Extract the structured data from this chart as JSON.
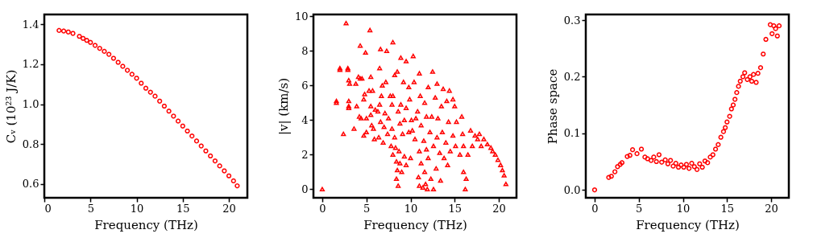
{
  "chart_data": [
    {
      "type": "scatter",
      "xlabel": "Frequency (THz)",
      "ylabel": "Cᵥ (10²³ J/K)",
      "marker": "circle",
      "grid": false,
      "xlim": [
        0,
        22
      ],
      "ylim": [
        0.53,
        1.45
      ],
      "xticks": [
        0,
        5,
        10,
        15,
        20
      ],
      "yticks": [
        0.6,
        0.8,
        {
          "value": 1.0,
          "label": "1.0"
        },
        1.2,
        1.4
      ],
      "series": [
        {
          "color": "#ff0000",
          "x": [
            1.6,
            2.1,
            2.6,
            3.1,
            3.8,
            4.2,
            4.6,
            5.0,
            5.5,
            6.0,
            6.5,
            7.0,
            7.5,
            8.0,
            8.5,
            9.0,
            9.5,
            10.0,
            10.5,
            11.0,
            11.5,
            12.0,
            12.5,
            13.0,
            13.5,
            14.0,
            14.5,
            15.0,
            15.5,
            16.0,
            16.5,
            17.0,
            17.5,
            18.0,
            18.5,
            19.0,
            19.5,
            20.0,
            20.5,
            20.9
          ],
          "values": [
            1.37,
            1.367,
            1.362,
            1.355,
            1.34,
            1.33,
            1.32,
            1.31,
            1.295,
            1.28,
            1.265,
            1.25,
            1.23,
            1.21,
            1.19,
            1.17,
            1.15,
            1.13,
            1.105,
            1.08,
            1.06,
            1.04,
            1.015,
            0.99,
            0.965,
            0.94,
            0.915,
            0.89,
            0.865,
            0.84,
            0.815,
            0.79,
            0.765,
            0.74,
            0.715,
            0.69,
            0.665,
            0.64,
            0.615,
            0.59
          ]
        }
      ]
    },
    {
      "type": "scatter",
      "xlabel": "Frequency (THz)",
      "ylabel": "|v| (km/s)",
      "marker": "triangle",
      "grid": false,
      "xlim": [
        -1,
        22
      ],
      "ylim": [
        -0.5,
        10.1
      ],
      "xticks": [
        0,
        5,
        10,
        15,
        20
      ],
      "yticks": [
        0,
        2,
        4,
        6,
        8,
        10
      ],
      "series": [
        {
          "color": "#ff0000",
          "x": [
            0,
            1.6,
            1.6,
            2.0,
            2.0,
            2.4,
            2.7,
            2.9,
            2.9,
            3.0,
            3.0,
            3.0,
            3.0,
            3.1,
            3.6,
            3.8,
            3.9,
            4.1,
            4.2,
            4.3,
            4.3,
            4.4,
            4.5,
            4.7,
            4.7,
            4.8,
            4.9,
            5.0,
            5.0,
            5.3,
            5.4,
            5.5,
            5.5,
            5.5,
            5.6,
            5.7,
            5.8,
            5.9,
            6.0,
            6.3,
            6.4,
            6.5,
            6.5,
            6.6,
            6.6,
            6.7,
            6.8,
            6.9,
            7.0,
            7.1,
            7.2,
            7.3,
            7.4,
            7.5,
            7.7,
            7.8,
            7.9,
            7.9,
            8.0,
            8.0,
            8.0,
            8.2,
            8.2,
            8.3,
            8.4,
            8.4,
            8.5,
            8.5,
            8.6,
            8.6,
            8.7,
            8.8,
            8.8,
            8.9,
            8.9,
            9.0,
            9.1,
            9.2,
            9.3,
            9.3,
            9.5,
            9.5,
            9.5,
            9.8,
            9.8,
            9.9,
            10.0,
            10.1,
            10.2,
            10.3,
            10.4,
            10.5,
            10.6,
            10.8,
            10.9,
            11.0,
            11.0,
            11.0,
            11.1,
            11.2,
            11.2,
            11.4,
            11.5,
            11.6,
            11.6,
            11.7,
            11.8,
            11.8,
            11.9,
            12.0,
            12.0,
            12.2,
            12.3,
            12.4,
            12.5,
            12.6,
            12.6,
            12.8,
            12.9,
            13.0,
            13.0,
            13.1,
            13.3,
            13.4,
            13.5,
            13.6,
            13.7,
            13.8,
            14.0,
            14.1,
            14.2,
            14.3,
            14.4,
            14.5,
            14.8,
            14.8,
            15.0,
            15.1,
            15.2,
            15.6,
            15.8,
            15.9,
            16.0,
            16.0,
            16.2,
            16.3,
            16.5,
            16.8,
            17.0,
            17.3,
            17.6,
            17.8,
            18.0,
            18.3,
            18.7,
            19.1,
            19.3,
            19.6,
            19.9,
            20.2,
            20.4,
            20.6,
            20.8
          ],
          "values": [
            0,
            5.1,
            5.0,
            6.9,
            7.0,
            3.2,
            9.6,
            7.0,
            6.9,
            6.3,
            5.1,
            4.8,
            4.7,
            6.1,
            3.5,
            6.1,
            4.8,
            6.5,
            4.2,
            8.3,
            6.4,
            4.1,
            6.4,
            5.2,
            3.1,
            5.5,
            7.9,
            4.1,
            3.3,
            5.7,
            9.2,
            6.5,
            4.8,
            4.3,
            3.7,
            5.7,
            3.5,
            2.9,
            4.6,
            4.5,
            3.0,
            7.0,
            4.9,
            8.1,
            3.9,
            5.4,
            6.0,
            2.7,
            3.6,
            4.4,
            6.2,
            8.0,
            3.2,
            4.1,
            5.4,
            2.5,
            4.9,
            3.5,
            8.5,
            5.4,
            2.0,
            6.6,
            3.0,
            2.4,
            1.6,
            0.6,
            6.8,
            1.1,
            4.5,
            0.2,
            2.2,
            3.8,
            1.5,
            7.6,
            4.9,
            1.0,
            3.2,
            6.2,
            4.0,
            1.9,
            7.4,
            4.7,
            1.4,
            5.9,
            3.3,
            5.2,
            1.8,
            4.0,
            3.4,
            7.7,
            6.2,
            2.9,
            4.1,
            4.5,
            0.7,
            6.7,
            2.2,
            0.2,
            5.4,
            3.7,
            1.5,
            0.1,
            2.8,
            5.0,
            1.0,
            0.3,
            4.2,
            2.3,
            0.0,
            5.9,
            1.8,
            3.3,
            0.6,
            4.2,
            6.8,
            2.5,
            0.0,
            5.3,
            1.2,
            6.1,
            3.0,
            4.1,
            2.1,
            0.5,
            4.8,
            3.3,
            5.8,
            1.8,
            2.7,
            5.1,
            1.4,
            3.9,
            5.7,
            2.2,
            5.2,
            3.1,
            4.8,
            2.5,
            3.9,
            2.0,
            4.2,
            3.2,
            1.0,
            2.5,
            0.0,
            0.6,
            2.0,
            3.4,
            2.5,
            3.1,
            2.9,
            3.2,
            2.5,
            2.9,
            2.6,
            2.4,
            2.2,
            2.0,
            1.7,
            1.4,
            1.1,
            0.8,
            0.3
          ]
        }
      ]
    },
    {
      "type": "scatter",
      "xlabel": "Frequency (THz)",
      "ylabel": "Phase space",
      "marker": "circle",
      "grid": false,
      "xlim": [
        -1,
        22
      ],
      "ylim": [
        -0.014,
        0.31
      ],
      "xticks": [
        0,
        5,
        10,
        15,
        20
      ],
      "yticks": [
        {
          "value": 0,
          "label": "0.0"
        },
        0.1,
        0.2,
        0.3
      ],
      "series": [
        {
          "color": "#ff0000",
          "x": [
            0,
            1.6,
            1.9,
            2.3,
            2.6,
            2.9,
            3.1,
            3.7,
            4.0,
            4.3,
            4.8,
            5.3,
            5.7,
            6.0,
            6.4,
            6.7,
            7.0,
            7.3,
            7.6,
            8.0,
            8.3,
            8.6,
            8.9,
            9.2,
            9.5,
            9.8,
            10.1,
            10.4,
            10.7,
            11.0,
            11.3,
            11.6,
            11.9,
            12.2,
            12.5,
            12.8,
            13.1,
            13.4,
            13.7,
            14.0,
            14.3,
            14.6,
            14.8,
            15.0,
            15.3,
            15.5,
            15.7,
            15.9,
            16.1,
            16.3,
            16.5,
            16.8,
            17.0,
            17.3,
            17.6,
            17.8,
            18.0,
            18.3,
            18.5,
            18.8,
            19.1,
            19.4,
            19.9,
            20.1,
            20.3,
            20.5,
            20.7,
            20.9
          ],
          "values": [
            0,
            0.022,
            0.024,
            0.032,
            0.041,
            0.045,
            0.048,
            0.059,
            0.061,
            0.071,
            0.064,
            0.072,
            0.058,
            0.055,
            0.052,
            0.058,
            0.05,
            0.062,
            0.049,
            0.053,
            0.046,
            0.052,
            0.042,
            0.047,
            0.04,
            0.044,
            0.04,
            0.045,
            0.038,
            0.047,
            0.041,
            0.036,
            0.046,
            0.04,
            0.051,
            0.048,
            0.058,
            0.062,
            0.072,
            0.08,
            0.093,
            0.103,
            0.11,
            0.12,
            0.13,
            0.143,
            0.15,
            0.16,
            0.172,
            0.183,
            0.192,
            0.2,
            0.207,
            0.195,
            0.2,
            0.192,
            0.204,
            0.19,
            0.206,
            0.216,
            0.24,
            0.266,
            0.292,
            0.276,
            0.29,
            0.285,
            0.272,
            0.29
          ]
        }
      ]
    }
  ]
}
